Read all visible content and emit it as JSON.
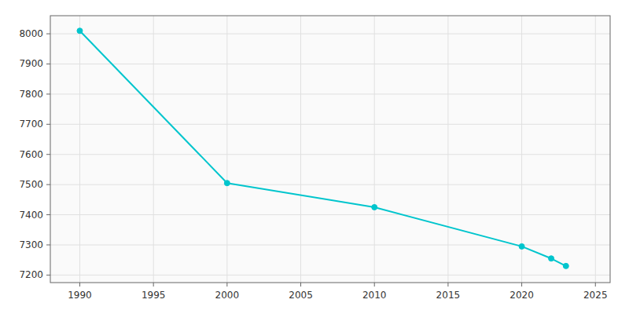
{
  "chart_data": {
    "type": "line",
    "x": [
      1990,
      2000,
      2010,
      2020,
      2022,
      2023
    ],
    "values": [
      8010,
      7505,
      7425,
      7295,
      7255,
      7230
    ],
    "color": "#00c5cd",
    "marker": "circle",
    "xlim": [
      1988,
      2026
    ],
    "ylim": [
      7175,
      8060
    ],
    "xticks": [
      1990,
      1995,
      2000,
      2005,
      2010,
      2015,
      2020,
      2025
    ],
    "yticks": [
      7200,
      7300,
      7400,
      7500,
      7600,
      7700,
      7800,
      7900,
      8000
    ],
    "grid": true
  }
}
